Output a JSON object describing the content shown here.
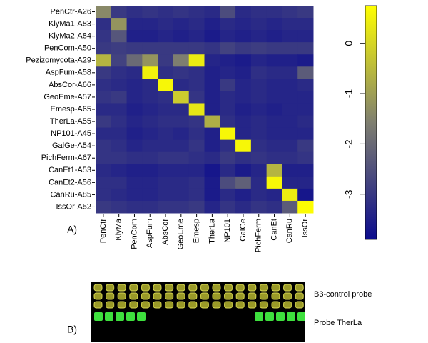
{
  "chart_data": {
    "type": "heatmap",
    "x": [
      "PenCtr",
      "KlyMa",
      "PenCom",
      "AspFum",
      "AbsCor",
      "GeoEme",
      "Emesp",
      "TherLa",
      "NP101",
      "GalGe",
      "PichFerm",
      "CanEt",
      "CanRu",
      "IssOr"
    ],
    "y": [
      "PenCtr-A26",
      "KlyMa1-A83",
      "KlyMa2-A84",
      "PenCom-A50",
      "Pezizomycota-A29",
      "AspFum-A58",
      "AbsCor-A66",
      "GeoEme-A57",
      "Emesp-A65",
      "TherLa-A55",
      "NP101-A45",
      "GalGe-A54",
      "PichFerm-A67",
      "CanEt1-A53",
      "CanEt2-A56",
      "CanRu-A85",
      "IssOr-A52"
    ],
    "z": [
      [
        -1.4,
        -3.0,
        -3.2,
        -3.1,
        -3.2,
        -3.1,
        -3.2,
        -3.3,
        -2.6,
        -3.3,
        -3.2,
        -3.2,
        -3.1,
        -3.0
      ],
      [
        -3.2,
        -1.2,
        -3.4,
        -3.4,
        -3.3,
        -3.4,
        -3.3,
        -3.5,
        -3.3,
        -3.4,
        -3.3,
        -3.4,
        -3.3,
        -3.3
      ],
      [
        -3.1,
        -2.4,
        -3.5,
        -3.5,
        -3.4,
        -3.5,
        -3.4,
        -3.6,
        -3.4,
        -3.5,
        -3.4,
        -3.5,
        -3.4,
        -3.4
      ],
      [
        -3.0,
        -2.9,
        -3.0,
        -3.0,
        -3.0,
        -3.0,
        -3.0,
        -3.1,
        -2.8,
        -3.0,
        -2.9,
        -3.0,
        -3.0,
        -3.0
      ],
      [
        -0.6,
        -2.8,
        -2.0,
        -1.2,
        -3.0,
        -1.6,
        0.4,
        -3.4,
        -3.5,
        -3.6,
        -3.4,
        -3.5,
        -3.5,
        -3.6
      ],
      [
        -3.0,
        -3.2,
        -3.3,
        0.5,
        -3.2,
        -3.1,
        -3.2,
        -3.5,
        -3.4,
        -3.5,
        -3.2,
        -3.3,
        -3.3,
        -2.3
      ],
      [
        -3.2,
        -3.3,
        -3.4,
        -3.3,
        0.6,
        -3.3,
        -3.2,
        -3.5,
        -3.0,
        -3.4,
        -3.3,
        -3.4,
        -3.4,
        -3.3
      ],
      [
        -3.1,
        -3.0,
        -3.4,
        -3.3,
        -3.2,
        -0.2,
        -3.1,
        -3.5,
        -3.3,
        -3.4,
        -3.3,
        -3.4,
        -3.4,
        -3.4
      ],
      [
        -3.3,
        -3.3,
        -3.5,
        -3.4,
        -3.3,
        -3.3,
        0.3,
        -3.5,
        -3.3,
        -3.5,
        -3.4,
        -3.5,
        -3.4,
        -3.4
      ],
      [
        -3.0,
        -3.2,
        -3.4,
        -3.3,
        -3.2,
        -3.2,
        -3.1,
        -0.7,
        -3.2,
        -3.4,
        -3.3,
        -3.4,
        -3.4,
        -3.3
      ],
      [
        -3.3,
        -3.3,
        -3.5,
        -3.4,
        -3.3,
        -3.4,
        -3.2,
        -3.5,
        0.6,
        -3.4,
        -3.3,
        -3.4,
        -3.4,
        -3.4
      ],
      [
        -3.1,
        -3.2,
        -3.4,
        -3.3,
        -3.3,
        -3.3,
        -3.1,
        -3.5,
        -3.2,
        0.6,
        -3.2,
        -3.3,
        -3.3,
        -3.0
      ],
      [
        -3.1,
        -3.1,
        -3.2,
        -3.2,
        -3.1,
        -3.1,
        -3.2,
        -3.3,
        -3.0,
        -3.2,
        -3.1,
        -3.2,
        -3.2,
        -3.1
      ],
      [
        -3.3,
        -3.4,
        -3.5,
        -3.5,
        -3.4,
        -3.4,
        -3.4,
        -3.7,
        -3.3,
        -3.6,
        -3.4,
        -0.6,
        -3.5,
        -3.5
      ],
      [
        -3.2,
        -3.2,
        -3.4,
        -3.4,
        -3.3,
        -3.3,
        -3.2,
        -3.6,
        -2.6,
        -2.2,
        -3.3,
        0.6,
        -3.4,
        -3.4
      ],
      [
        -3.2,
        -3.3,
        -3.4,
        -3.4,
        -3.3,
        -3.3,
        -3.2,
        -3.6,
        -3.3,
        -3.5,
        -3.3,
        -3.4,
        0.4,
        -3.7
      ],
      [
        -3.0,
        -3.1,
        -3.2,
        -3.2,
        -3.1,
        -3.1,
        -3.0,
        -3.4,
        -3.1,
        -3.3,
        -3.1,
        -3.2,
        -2.3,
        0.7
      ]
    ],
    "zlim": [
      -3.9,
      0.75
    ],
    "zticks": [
      0,
      -1,
      -2,
      -3
    ],
    "colors": [
      "#0c0c8e",
      "#7f7f70",
      "#ffff00"
    ]
  },
  "panels": {
    "a": "A)",
    "b": "B)"
  },
  "array_image": {
    "labels": [
      "B3-control probe",
      "Probe TherLa"
    ]
  }
}
